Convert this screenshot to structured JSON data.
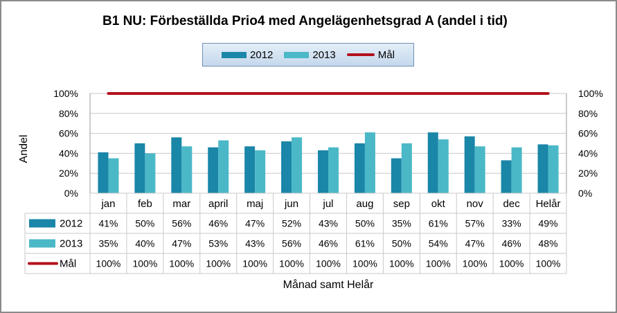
{
  "chart_data": {
    "type": "bar",
    "title": "B1 NU: Förbeställda Prio4 med Angelägenhetsgrad A (andel i tid)",
    "xlabel": "Månad samt Helår",
    "ylabel": "Andel",
    "ylim": [
      0,
      100
    ],
    "y_ticks": [
      "0%",
      "20%",
      "40%",
      "60%",
      "80%",
      "100%"
    ],
    "categories": [
      "jan",
      "feb",
      "mar",
      "april",
      "maj",
      "jun",
      "jul",
      "aug",
      "sep",
      "okt",
      "nov",
      "dec",
      "Helår"
    ],
    "series": [
      {
        "name": "2012",
        "kind": "bar",
        "color": "#1a86a8",
        "values": [
          41,
          50,
          56,
          46,
          47,
          52,
          43,
          50,
          35,
          61,
          57,
          33,
          49
        ],
        "labels": [
          "41%",
          "50%",
          "56%",
          "46%",
          "47%",
          "52%",
          "43%",
          "50%",
          "35%",
          "61%",
          "57%",
          "33%",
          "49%"
        ]
      },
      {
        "name": "2013",
        "kind": "bar",
        "color": "#4bb8c7",
        "values": [
          35,
          40,
          47,
          53,
          43,
          56,
          46,
          61,
          50,
          54,
          47,
          46,
          48
        ],
        "labels": [
          "35%",
          "40%",
          "47%",
          "53%",
          "43%",
          "56%",
          "46%",
          "61%",
          "50%",
          "54%",
          "47%",
          "46%",
          "48%"
        ]
      },
      {
        "name": "Mål",
        "kind": "line",
        "color": "#b2111b",
        "values": [
          100,
          100,
          100,
          100,
          100,
          100,
          100,
          100,
          100,
          100,
          100,
          100,
          100
        ],
        "labels": [
          "100%",
          "100%",
          "100%",
          "100%",
          "100%",
          "100%",
          "100%",
          "100%",
          "100%",
          "100%",
          "100%",
          "100%",
          "100%"
        ]
      }
    ],
    "legend_position": "top-center",
    "grid": true,
    "data_table": true
  }
}
